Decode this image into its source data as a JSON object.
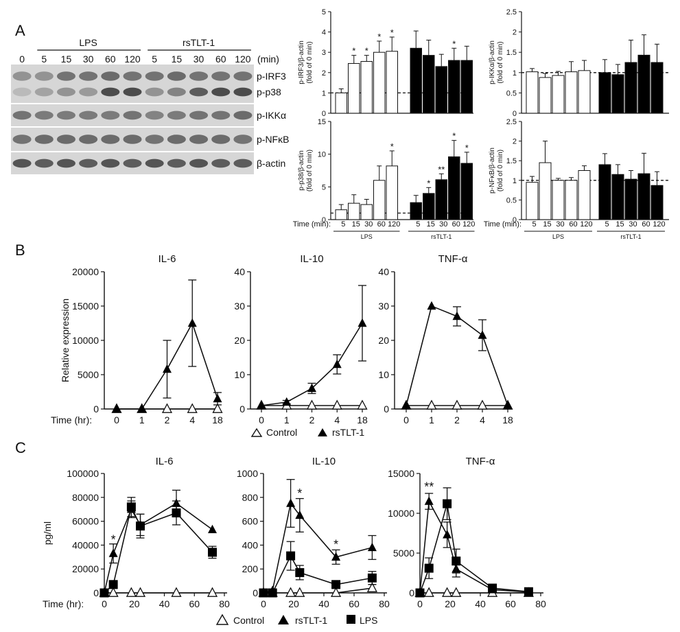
{
  "panels": {
    "a": "A",
    "b": "B",
    "c": "C"
  },
  "blot": {
    "time_zero": "0",
    "lps_label": "LPS",
    "rstlt_label": "rsTLT-1",
    "lps_times": [
      "5",
      "15",
      "30",
      "60",
      "120"
    ],
    "rstlt_times": [
      "5",
      "15",
      "30",
      "60",
      "120"
    ],
    "unit": "(min)",
    "rows": [
      "p-IRF3",
      "p-p38",
      "p-IKKα",
      "p-NFκB",
      "β-actin"
    ],
    "band_darkness": [
      [
        0.35,
        0.35,
        0.55,
        0.55,
        0.6,
        0.55,
        0.55,
        0.6,
        0.55,
        0.55,
        0.55
      ],
      [
        0.1,
        0.25,
        0.35,
        0.3,
        0.8,
        0.8,
        0.35,
        0.45,
        0.7,
        0.8,
        0.8
      ],
      [
        0.55,
        0.5,
        0.5,
        0.5,
        0.5,
        0.55,
        0.45,
        0.5,
        0.55,
        0.55,
        0.6
      ],
      [
        0.55,
        0.6,
        0.6,
        0.6,
        0.6,
        0.6,
        0.55,
        0.6,
        0.6,
        0.6,
        0.55
      ],
      [
        0.75,
        0.7,
        0.75,
        0.7,
        0.75,
        0.7,
        0.75,
        0.7,
        0.75,
        0.7,
        0.7
      ]
    ]
  },
  "legends": {
    "b": {
      "control": "Control",
      "rstlt": "rsTLT-1"
    },
    "c": {
      "control": "Control",
      "rstlt": "rsTLT-1",
      "lps": "LPS"
    }
  },
  "colors": {
    "ink": "#111111",
    "open": "#ffffff",
    "filled": "#000000"
  },
  "chart_data": [
    {
      "id": "irf3",
      "type": "bar",
      "ylabel": [
        "p-IRF3/β-actin",
        "(fold of 0 min)"
      ],
      "ylim": [
        0,
        5
      ],
      "yticks": [
        "0",
        "1",
        "2",
        "3",
        "4",
        "5"
      ],
      "baseline": 1,
      "time_label": "",
      "group_labels": [],
      "categories": [
        "5",
        "15",
        "30",
        "60",
        "120"
      ],
      "series": [
        {
          "name": "LPS",
          "fill": "open",
          "values": [
            1.0,
            2.45,
            2.55,
            3.0,
            3.05
          ],
          "errors": [
            0.2,
            0.4,
            0.3,
            0.55,
            0.7
          ],
          "sig": [
            "",
            "*",
            "*",
            "*",
            "*"
          ]
        },
        {
          "name": "rsTLT-1",
          "fill": "filled",
          "values": [
            3.2,
            2.85,
            2.3,
            2.6,
            2.6
          ],
          "errors": [
            0.85,
            0.75,
            0.6,
            0.6,
            0.7
          ],
          "sig": [
            "",
            "",
            "",
            "*",
            ""
          ]
        }
      ]
    },
    {
      "id": "ikka",
      "type": "bar",
      "ylabel": [
        "p-IKKα/β-actin",
        "(fold of 0 min)"
      ],
      "ylim": [
        0,
        2.5
      ],
      "yticks": [
        "0",
        "0.5",
        "1",
        "1.5",
        "2",
        "2.5"
      ],
      "baseline": 1,
      "time_label": "",
      "group_labels": [],
      "categories": [
        "5",
        "15",
        "30",
        "60",
        "120"
      ],
      "series": [
        {
          "name": "LPS",
          "fill": "open",
          "values": [
            1.02,
            0.88,
            0.93,
            1.02,
            1.05
          ],
          "errors": [
            0.08,
            0.1,
            0.1,
            0.25,
            0.25
          ],
          "sig": [
            "",
            "",
            "",
            "",
            ""
          ]
        },
        {
          "name": "rsTLT-1",
          "fill": "filled",
          "values": [
            1.0,
            0.95,
            1.25,
            1.43,
            1.25
          ],
          "errors": [
            0.32,
            0.25,
            0.55,
            0.5,
            0.45
          ],
          "sig": [
            "",
            "",
            "",
            "",
            ""
          ]
        }
      ]
    },
    {
      "id": "p38",
      "type": "bar",
      "ylabel": [
        "p-p38/β-actin",
        "(fold of 0 min)"
      ],
      "ylim": [
        0,
        15
      ],
      "yticks": [
        "0",
        "5",
        "10",
        "15"
      ],
      "baseline": 1,
      "time_label": "Time (min):",
      "group_labels": [
        "LPS",
        "rsTLT-1"
      ],
      "categories": [
        "5",
        "15",
        "30",
        "60",
        "120"
      ],
      "series": [
        {
          "name": "LPS",
          "fill": "open",
          "values": [
            1.5,
            2.5,
            2.3,
            6.0,
            8.2
          ],
          "errors": [
            0.8,
            1.3,
            0.8,
            2.2,
            2.3
          ],
          "sig": [
            "",
            "",
            "",
            "",
            "*"
          ]
        },
        {
          "name": "rsTLT-1",
          "fill": "filled",
          "values": [
            2.6,
            4.0,
            6.1,
            9.6,
            8.6
          ],
          "errors": [
            1.1,
            0.9,
            0.9,
            2.5,
            1.7
          ],
          "sig": [
            "",
            "*",
            "**",
            "*",
            "*"
          ]
        }
      ]
    },
    {
      "id": "nfkb",
      "type": "bar",
      "ylabel": [
        "p-NFκB/β-actin",
        "(fold of 0 min)"
      ],
      "ylim": [
        0,
        2.5
      ],
      "yticks": [
        "0",
        "0.5",
        "1",
        "1.5",
        "2",
        "2.5"
      ],
      "baseline": 1,
      "time_label": "Time (min):",
      "group_labels": [
        "LPS",
        "rsTLT-1"
      ],
      "categories": [
        "5",
        "15",
        "30",
        "60",
        "120"
      ],
      "series": [
        {
          "name": "LPS",
          "fill": "open",
          "values": [
            0.95,
            1.45,
            1.0,
            1.0,
            1.25
          ],
          "errors": [
            0.15,
            0.55,
            0.05,
            0.07,
            0.12
          ],
          "sig": [
            "",
            "",
            "",
            "",
            ""
          ]
        },
        {
          "name": "rsTLT-1",
          "fill": "filled",
          "values": [
            1.4,
            1.15,
            1.03,
            1.17,
            0.87
          ],
          "errors": [
            0.28,
            0.25,
            0.22,
            0.52,
            0.35
          ],
          "sig": [
            "",
            "",
            "",
            "",
            ""
          ]
        }
      ]
    },
    {
      "id": "b_il6",
      "type": "line",
      "title": "IL-6",
      "ylabel": "Relative expression",
      "xlabel": "Time (hr):",
      "categories": [
        "0",
        "1",
        "2",
        "4",
        "18"
      ],
      "ylim": [
        0,
        20000
      ],
      "yticks": [
        "0",
        "5000",
        "10000",
        "15000",
        "20000"
      ],
      "series": [
        {
          "name": "Control",
          "marker": "open-triangle",
          "values": [
            0,
            0,
            0,
            0,
            0
          ],
          "errors": [
            0,
            0,
            0,
            0,
            0
          ]
        },
        {
          "name": "rsTLT-1",
          "marker": "filled-triangle",
          "values": [
            0,
            0,
            5800,
            12500,
            1500
          ],
          "errors": [
            0,
            0,
            4200,
            6300,
            900
          ]
        }
      ]
    },
    {
      "id": "b_il10",
      "type": "line",
      "title": "IL-10",
      "ylabel": "",
      "xlabel": "",
      "categories": [
        "0",
        "1",
        "2",
        "4",
        "18"
      ],
      "ylim": [
        0,
        40
      ],
      "yticks": [
        "0",
        "10",
        "20",
        "30",
        "40"
      ],
      "series": [
        {
          "name": "Control",
          "marker": "open-triangle",
          "values": [
            1,
            1,
            1,
            1,
            1
          ],
          "errors": [
            0,
            0,
            0,
            0,
            0
          ]
        },
        {
          "name": "rsTLT-1",
          "marker": "filled-triangle",
          "values": [
            1,
            2,
            6,
            13,
            25
          ],
          "errors": [
            0,
            0.5,
            1.5,
            2.8,
            11
          ]
        }
      ]
    },
    {
      "id": "b_tnf",
      "type": "line",
      "title": "TNF-α",
      "ylabel": "",
      "xlabel": "",
      "categories": [
        "0",
        "1",
        "2",
        "4",
        "18"
      ],
      "ylim": [
        0,
        40
      ],
      "yticks": [
        "0",
        "10",
        "20",
        "30",
        "40"
      ],
      "series": [
        {
          "name": "Control",
          "marker": "open-triangle",
          "values": [
            1,
            1,
            1,
            1,
            1
          ],
          "errors": [
            0,
            0,
            0,
            0,
            0
          ]
        },
        {
          "name": "rsTLT-1",
          "marker": "filled-triangle",
          "values": [
            1,
            30,
            27,
            21.5,
            1
          ],
          "errors": [
            0,
            0,
            2.8,
            4.5,
            0
          ]
        }
      ]
    },
    {
      "id": "c_il6",
      "type": "line",
      "title": "IL-6",
      "ylabel": "pg/ml",
      "xlabel": "Time (hr):",
      "xlim": [
        0,
        80
      ],
      "xticks": [
        "0",
        "20",
        "40",
        "60",
        "80"
      ],
      "ylim": [
        0,
        100000
      ],
      "yticks": [
        "0",
        "20000",
        "40000",
        "60000",
        "80000",
        "100000"
      ],
      "x": [
        0,
        6,
        18,
        24,
        48,
        72
      ],
      "series": [
        {
          "name": "Control",
          "marker": "open-triangle",
          "values": [
            0,
            0,
            0,
            0,
            0,
            0
          ],
          "errors": [
            0,
            0,
            0,
            0,
            0,
            0
          ]
        },
        {
          "name": "rsTLT-1",
          "marker": "filled-triangle",
          "values": [
            0,
            33000,
            70000,
            57000,
            75000,
            53000
          ],
          "errors": [
            0,
            8000,
            7000,
            9000,
            11000,
            0
          ]
        },
        {
          "name": "LPS",
          "marker": "square",
          "values": [
            0,
            7000,
            72000,
            56000,
            67000,
            34000
          ],
          "errors": [
            0,
            0,
            8000,
            10000,
            10000,
            5000
          ]
        }
      ],
      "annotations": [
        {
          "x": 6,
          "y": 41000,
          "text": "*"
        }
      ]
    },
    {
      "id": "c_il10",
      "type": "line",
      "title": "IL-10",
      "ylabel": "",
      "xlabel": "",
      "xlim": [
        0,
        80
      ],
      "xticks": [
        "0",
        "20",
        "40",
        "60",
        "80"
      ],
      "ylim": [
        0,
        1000
      ],
      "yticks": [
        "0",
        "200",
        "400",
        "600",
        "800",
        "1000"
      ],
      "x": [
        0,
        6,
        18,
        24,
        48,
        72
      ],
      "series": [
        {
          "name": "Control",
          "marker": "open-triangle",
          "values": [
            0,
            0,
            0,
            0,
            0,
            40
          ],
          "errors": [
            0,
            0,
            0,
            0,
            0,
            30
          ]
        },
        {
          "name": "rsTLT-1",
          "marker": "filled-triangle",
          "values": [
            0,
            20,
            750,
            650,
            300,
            380
          ],
          "errors": [
            0,
            0,
            200,
            140,
            60,
            100
          ]
        },
        {
          "name": "LPS",
          "marker": "square",
          "values": [
            0,
            0,
            310,
            170,
            70,
            125
          ],
          "errors": [
            0,
            0,
            120,
            60,
            30,
            55
          ]
        }
      ],
      "annotations": [
        {
          "x": 24,
          "y": 800,
          "text": "*"
        },
        {
          "x": 48,
          "y": 370,
          "text": "*"
        }
      ]
    },
    {
      "id": "c_tnf",
      "type": "line",
      "title": "TNF-α",
      "ylabel": "",
      "xlabel": "",
      "xlim": [
        0,
        80
      ],
      "xticks": [
        "0",
        "20",
        "40",
        "60",
        "80"
      ],
      "ylim": [
        0,
        15000
      ],
      "yticks": [
        "0",
        "5000",
        "10000",
        "15000"
      ],
      "x": [
        0,
        6,
        18,
        24,
        48,
        72
      ],
      "series": [
        {
          "name": "Control",
          "marker": "open-triangle",
          "values": [
            0,
            0,
            0,
            0,
            0,
            0
          ],
          "errors": [
            0,
            0,
            0,
            0,
            0,
            0
          ]
        },
        {
          "name": "rsTLT-1",
          "marker": "filled-triangle",
          "values": [
            0,
            11500,
            7300,
            3000,
            400,
            100
          ],
          "errors": [
            0,
            1000,
            1600,
            1000,
            150,
            0
          ]
        },
        {
          "name": "LPS",
          "marker": "square",
          "values": [
            0,
            3100,
            11200,
            4000,
            600,
            150
          ],
          "errors": [
            0,
            1300,
            2000,
            1500,
            200,
            0
          ]
        }
      ],
      "annotations": [
        {
          "x": 6,
          "y": 12800,
          "text": "**"
        }
      ]
    }
  ]
}
